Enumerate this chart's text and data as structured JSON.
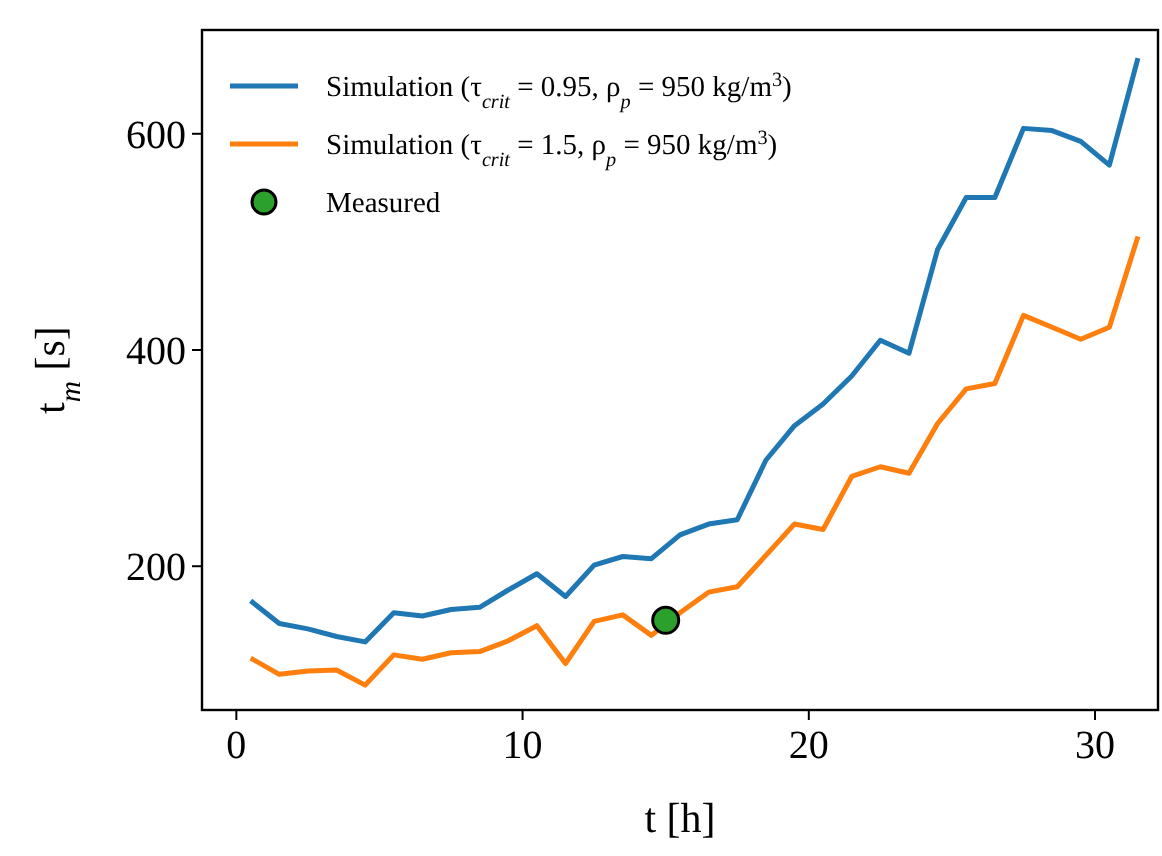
{
  "chart_data": {
    "type": "line",
    "xlabel": "t [h]",
    "ylabel": "t$_{m}$ [s]",
    "xlim": [
      -1.2,
      32.2
    ],
    "ylim": [
      67,
      696
    ],
    "xticks": [
      0,
      10,
      20,
      30
    ],
    "yticks": [
      200,
      400,
      600
    ],
    "grid": false,
    "legend": "top left",
    "x": [
      0.5,
      1.5,
      2.5,
      3.5,
      4.5,
      5.5,
      6.5,
      7.5,
      8.5,
      9.5,
      10.5,
      11.5,
      12.5,
      13.5,
      14.5,
      15.5,
      16.5,
      17.5,
      18.5,
      19.5,
      20.5,
      21.5,
      22.5,
      23.5,
      24.5,
      25.5,
      26.5,
      27.5,
      28.5,
      29.5,
      30.5,
      31.5
    ],
    "series": [
      {
        "name": "Simulation (τ$_{crit}$ = 0.95, ρ$_{p}$ = 950 kg/m$^{3}$)",
        "color": "#1f77b4",
        "values": [
          168,
          147,
          142,
          135,
          130,
          157,
          154,
          160,
          162,
          178,
          193,
          172,
          201,
          209,
          207,
          229,
          239,
          243,
          298,
          330,
          350,
          376,
          409,
          397,
          493,
          541,
          541,
          605,
          603,
          593,
          571,
          670
        ]
      },
      {
        "name": "Simulation (τ$_{crit}$ = 1.5, ρ$_{p}$ = 950 kg/m$^{3}$)",
        "color": "#ff7f0e",
        "values": [
          115,
          100,
          103,
          104,
          90,
          118,
          114,
          120,
          121,
          131,
          145,
          110,
          149,
          155,
          136,
          157,
          176,
          181,
          210,
          239,
          234,
          283,
          292,
          286,
          332,
          364,
          369,
          432,
          421,
          410,
          421,
          505
        ]
      },
      {
        "name": "Measured",
        "type": "scatter",
        "marker": "circle",
        "color": "#2ca02c",
        "x": [
          15
        ],
        "values": [
          150
        ]
      }
    ]
  }
}
